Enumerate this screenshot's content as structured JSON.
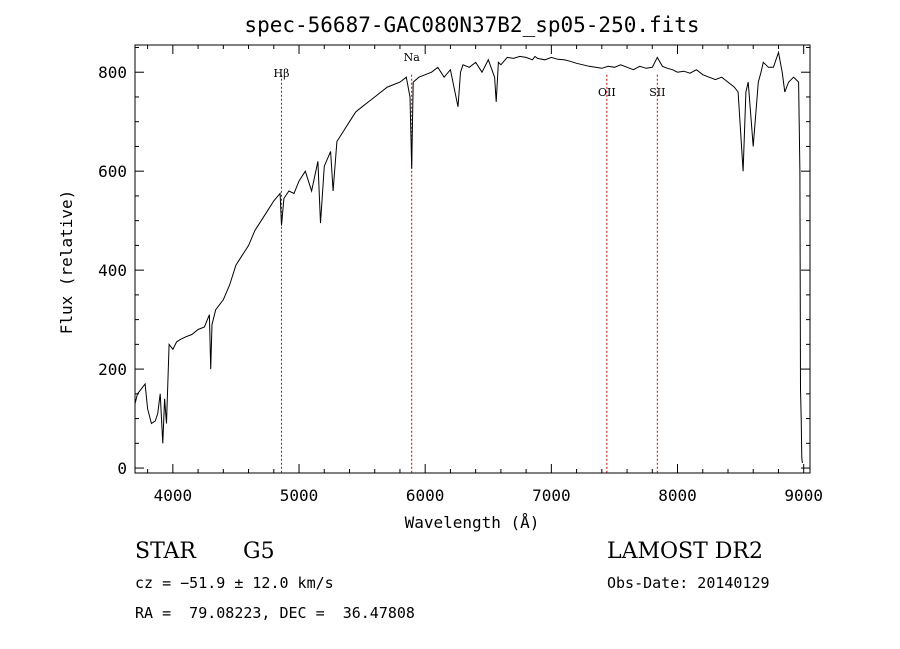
{
  "chart_data": {
    "type": "line",
    "title": "spec-56687-GAC080N37B2_sp05-250.fits",
    "xlabel": "Wavelength (Å)",
    "ylabel": "Flux (relative)",
    "xlim": [
      3700,
      9050
    ],
    "ylim": [
      -10,
      855
    ],
    "xticks": [
      4000,
      5000,
      6000,
      7000,
      8000,
      9000
    ],
    "yticks": [
      0,
      200,
      400,
      600,
      800
    ],
    "grid": false,
    "line_color": "#000000",
    "marker_color": "#cc0000",
    "series": [
      {
        "x": [
          3700,
          3720,
          3750,
          3780,
          3800,
          3830,
          3860,
          3880,
          3900,
          3920,
          3935,
          3950,
          3970,
          4000,
          4030,
          4060,
          4100,
          4150,
          4200,
          4250,
          4290,
          4300,
          4310,
          4340,
          4400,
          4450,
          4500,
          4550,
          4600,
          4650,
          4700,
          4750,
          4800,
          4850,
          4861,
          4880,
          4920,
          4960,
          5000,
          5050,
          5100,
          5150,
          5170,
          5200,
          5250,
          5270,
          5300,
          5350,
          5400,
          5450,
          5500,
          5550,
          5600,
          5650,
          5700,
          5750,
          5800,
          5850,
          5880,
          5893,
          5905,
          5950,
          6000,
          6050,
          6100,
          6150,
          6200,
          6260,
          6280,
          6300,
          6350,
          6400,
          6450,
          6500,
          6550,
          6563,
          6580,
          6600,
          6650,
          6700,
          6750,
          6800,
          6850,
          6870,
          6890,
          6950,
          7000,
          7050,
          7100,
          7150,
          7200,
          7250,
          7300,
          7350,
          7400,
          7450,
          7500,
          7550,
          7600,
          7650,
          7700,
          7750,
          7800,
          7840,
          7880,
          7920,
          7960,
          8000,
          8050,
          8100,
          8150,
          8200,
          8250,
          8300,
          8350,
          8400,
          8450,
          8480,
          8500,
          8520,
          8542,
          8560,
          8600,
          8640,
          8662,
          8680,
          8720,
          8760,
          8800,
          8830,
          8850,
          8880,
          8920,
          8960,
          8970,
          8975,
          8980,
          8985,
          8990
        ],
        "y": [
          130,
          150,
          160,
          170,
          120,
          90,
          95,
          110,
          150,
          50,
          140,
          90,
          250,
          240,
          255,
          260,
          265,
          270,
          280,
          285,
          310,
          200,
          290,
          320,
          340,
          370,
          410,
          430,
          450,
          480,
          500,
          520,
          540,
          555,
          490,
          545,
          560,
          555,
          580,
          600,
          560,
          620,
          495,
          610,
          640,
          560,
          660,
          680,
          700,
          720,
          730,
          740,
          750,
          760,
          770,
          775,
          780,
          790,
          750,
          605,
          780,
          790,
          795,
          800,
          810,
          790,
          805,
          730,
          800,
          815,
          810,
          820,
          800,
          825,
          790,
          740,
          820,
          815,
          830,
          828,
          832,
          830,
          825,
          832,
          828,
          825,
          830,
          826,
          825,
          822,
          818,
          815,
          812,
          810,
          808,
          812,
          810,
          815,
          810,
          805,
          812,
          808,
          810,
          830,
          812,
          808,
          805,
          800,
          802,
          798,
          805,
          795,
          790,
          785,
          790,
          780,
          770,
          760,
          680,
          600,
          760,
          780,
          650,
          780,
          800,
          820,
          810,
          810,
          840,
          800,
          760,
          780,
          790,
          780,
          600,
          160,
          100,
          20,
          10
        ]
      }
    ],
    "markers": [
      {
        "label": "Hβ",
        "x": 4861
      },
      {
        "label": "Na",
        "x": 5893
      },
      {
        "label": "OII",
        "x": 7440
      },
      {
        "label": "SII",
        "x": 7840
      }
    ]
  },
  "info": {
    "object_type": "STAR",
    "subclass": "G5",
    "survey": "LAMOST DR2",
    "cz": "cz = −51.9 ± 12.0 km/s",
    "obs_date": "Obs-Date: 20140129",
    "coords": "RA =  79.08223, DEC =  36.47808"
  }
}
